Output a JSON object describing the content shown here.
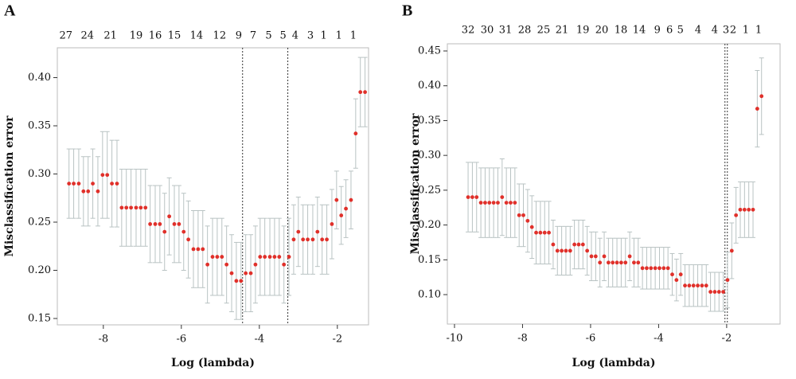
{
  "chart_data": [
    {
      "type": "scatter",
      "label": "A",
      "xlabel": "Log (lambda)",
      "ylabel": "Misclassification error",
      "color": "#e0302a",
      "error_color": "#b9c3c3",
      "xlim": [
        -9.18,
        -1.2
      ],
      "ylim": [
        0.1434,
        0.431
      ],
      "xticks": [
        -8,
        -6,
        -4,
        -2
      ],
      "yticks": [
        0.15,
        {
          "value": 0.2,
          "label": "0.20"
        },
        0.25,
        {
          "value": 0.3,
          "label": "0.30"
        },
        0.35,
        {
          "value": 0.4,
          "label": "0.40"
        }
      ],
      "x2ticks": [
        {
          "value": -8.96,
          "label": "27"
        },
        {
          "value": -8.41,
          "label": "24"
        },
        {
          "value": -7.82,
          "label": "21"
        },
        {
          "value": -7.16,
          "label": "19"
        },
        {
          "value": -6.67,
          "label": "16"
        },
        {
          "value": -6.18,
          "label": "15"
        },
        {
          "value": -5.61,
          "label": "14"
        },
        {
          "value": -5.02,
          "label": "12"
        },
        {
          "value": -4.53,
          "label": "9"
        },
        {
          "value": -4.16,
          "label": "7"
        },
        {
          "value": -3.76,
          "label": "5"
        },
        {
          "value": -3.39,
          "label": "5"
        },
        {
          "value": -3.08,
          "label": "4"
        },
        {
          "value": -2.69,
          "label": "3"
        },
        {
          "value": -2.35,
          "label": "1"
        },
        {
          "value": -1.96,
          "label": "1"
        },
        {
          "value": -1.59,
          "label": "1"
        }
      ],
      "vlines": [
        -4.43,
        -3.27
      ],
      "x": [
        -8.88,
        -8.76,
        -8.63,
        -8.51,
        -8.39,
        -8.27,
        -8.14,
        -8.02,
        -7.9,
        -7.78,
        -7.65,
        -7.53,
        -7.41,
        -7.29,
        -7.16,
        -7.04,
        -6.92,
        -6.8,
        -6.67,
        -6.55,
        -6.43,
        -6.31,
        -6.18,
        -6.06,
        -5.94,
        -5.82,
        -5.69,
        -5.57,
        -5.45,
        -5.33,
        -5.2,
        -5.08,
        -4.96,
        -4.84,
        -4.71,
        -4.59,
        -4.47,
        -4.35,
        -4.22,
        -4.1,
        -3.98,
        -3.86,
        -3.73,
        -3.61,
        -3.49,
        -3.37,
        -3.24,
        -3.12,
        -3.0,
        -2.88,
        -2.76,
        -2.63,
        -2.51,
        -2.39,
        -2.27,
        -2.14,
        -2.02,
        -1.9,
        -1.78,
        -1.65,
        -1.53,
        -1.41,
        -1.29
      ],
      "values": [
        0.29,
        0.29,
        0.29,
        0.282,
        0.282,
        0.29,
        0.282,
        0.299,
        0.299,
        0.29,
        0.29,
        0.265,
        0.265,
        0.265,
        0.265,
        0.265,
        0.265,
        0.248,
        0.248,
        0.248,
        0.24,
        0.256,
        0.248,
        0.248,
        0.24,
        0.232,
        0.222,
        0.222,
        0.222,
        0.206,
        0.214,
        0.214,
        0.214,
        0.206,
        0.197,
        0.189,
        0.189,
        0.197,
        0.197,
        0.206,
        0.214,
        0.214,
        0.214,
        0.214,
        0.214,
        0.206,
        0.214,
        0.232,
        0.24,
        0.232,
        0.232,
        0.232,
        0.24,
        0.232,
        0.232,
        0.248,
        0.273,
        0.257,
        0.264,
        0.273,
        0.342,
        0.385,
        0.385
      ],
      "errors": [
        0.036,
        0.036,
        0.036,
        0.036,
        0.036,
        0.036,
        0.036,
        0.045,
        0.045,
        0.045,
        0.045,
        0.04,
        0.04,
        0.04,
        0.04,
        0.04,
        0.04,
        0.04,
        0.04,
        0.04,
        0.04,
        0.04,
        0.04,
        0.04,
        0.04,
        0.04,
        0.04,
        0.04,
        0.04,
        0.04,
        0.04,
        0.04,
        0.04,
        0.04,
        0.04,
        0.04,
        0.04,
        0.04,
        0.04,
        0.04,
        0.04,
        0.04,
        0.04,
        0.04,
        0.04,
        0.04,
        0.04,
        0.036,
        0.036,
        0.036,
        0.036,
        0.036,
        0.036,
        0.036,
        0.036,
        0.036,
        0.03,
        0.03,
        0.03,
        0.03,
        0.036,
        0.036,
        0.036
      ]
    },
    {
      "type": "scatter",
      "label": "B",
      "xlabel": "Log (lambda)",
      "ylabel": "Misclassification error",
      "color": "#e0302a",
      "error_color": "#b9c3c3",
      "xlim": [
        -10.21,
        -0.43
      ],
      "ylim": [
        0.0577,
        0.4603
      ],
      "xticks": [
        -10,
        -8,
        -6,
        -4,
        -2
      ],
      "yticks": [
        {
          "value": 0.1,
          "label": "0.10"
        },
        0.15,
        {
          "value": 0.2,
          "label": "0.20"
        },
        0.25,
        {
          "value": 0.3,
          "label": "0.30"
        },
        0.35,
        {
          "value": 0.4,
          "label": "0.40"
        },
        0.45
      ],
      "x2ticks": [
        {
          "value": -9.6,
          "label": "32"
        },
        {
          "value": -9.04,
          "label": "30"
        },
        {
          "value": -8.5,
          "label": "31"
        },
        {
          "value": -7.94,
          "label": "28"
        },
        {
          "value": -7.38,
          "label": "25"
        },
        {
          "value": -6.84,
          "label": "21"
        },
        {
          "value": -6.23,
          "label": "19"
        },
        {
          "value": -5.67,
          "label": "20"
        },
        {
          "value": -5.11,
          "label": "18"
        },
        {
          "value": -4.57,
          "label": "14"
        },
        {
          "value": -4.04,
          "label": "9"
        },
        {
          "value": -3.68,
          "label": "6"
        },
        {
          "value": -3.36,
          "label": "5"
        },
        {
          "value": -2.84,
          "label": "4"
        },
        {
          "value": -2.35,
          "label": "4"
        },
        {
          "value": -2.02,
          "label": "3"
        },
        {
          "value": -1.81,
          "label": "2"
        },
        {
          "value": -1.44,
          "label": "1"
        },
        {
          "value": -1.06,
          "label": "1"
        }
      ],
      "vlines": [
        -2.05,
        -1.98
      ],
      "x": [
        -9.6,
        -9.475,
        -9.35,
        -9.225,
        -9.1,
        -8.975,
        -8.85,
        -8.725,
        -8.6,
        -8.475,
        -8.35,
        -8.225,
        -8.1,
        -7.975,
        -7.85,
        -7.725,
        -7.6,
        -7.475,
        -7.35,
        -7.225,
        -7.1,
        -6.975,
        -6.85,
        -6.725,
        -6.6,
        -6.475,
        -6.35,
        -6.225,
        -6.1,
        -5.975,
        -5.85,
        -5.725,
        -5.6,
        -5.475,
        -5.35,
        -5.225,
        -5.1,
        -4.975,
        -4.85,
        -4.725,
        -4.6,
        -4.475,
        -4.35,
        -4.225,
        -4.1,
        -3.975,
        -3.85,
        -3.725,
        -3.6,
        -3.475,
        -3.35,
        -3.225,
        -3.1,
        -2.975,
        -2.85,
        -2.725,
        -2.6,
        -2.475,
        -2.35,
        -2.225,
        -2.1,
        -1.975,
        -1.85,
        -1.725,
        -1.6,
        -1.475,
        -1.35,
        -1.225,
        -1.1,
        -0.975
      ],
      "values": [
        0.24,
        0.24,
        0.24,
        0.232,
        0.232,
        0.232,
        0.232,
        0.232,
        0.24,
        0.232,
        0.232,
        0.232,
        0.214,
        0.214,
        0.206,
        0.197,
        0.189,
        0.189,
        0.189,
        0.189,
        0.172,
        0.163,
        0.163,
        0.163,
        0.163,
        0.172,
        0.172,
        0.172,
        0.163,
        0.155,
        0.155,
        0.146,
        0.155,
        0.146,
        0.146,
        0.146,
        0.146,
        0.146,
        0.155,
        0.146,
        0.146,
        0.138,
        0.138,
        0.138,
        0.138,
        0.138,
        0.138,
        0.138,
        0.129,
        0.121,
        0.129,
        0.113,
        0.113,
        0.113,
        0.113,
        0.113,
        0.113,
        0.104,
        0.104,
        0.104,
        0.104,
        0.121,
        0.163,
        0.214,
        0.222,
        0.222,
        0.222,
        0.222,
        0.367,
        0.385
      ],
      "errors": [
        0.05,
        0.05,
        0.05,
        0.05,
        0.05,
        0.05,
        0.05,
        0.05,
        0.055,
        0.05,
        0.05,
        0.05,
        0.045,
        0.045,
        0.045,
        0.045,
        0.045,
        0.045,
        0.045,
        0.045,
        0.035,
        0.035,
        0.035,
        0.035,
        0.035,
        0.035,
        0.035,
        0.035,
        0.035,
        0.035,
        0.035,
        0.035,
        0.035,
        0.035,
        0.035,
        0.035,
        0.035,
        0.035,
        0.035,
        0.035,
        0.035,
        0.03,
        0.03,
        0.03,
        0.03,
        0.03,
        0.03,
        0.03,
        0.03,
        0.03,
        0.03,
        0.03,
        0.03,
        0.03,
        0.03,
        0.03,
        0.03,
        0.028,
        0.028,
        0.028,
        0.028,
        0.04,
        0.04,
        0.04,
        0.04,
        0.04,
        0.04,
        0.04,
        0.055,
        0.055
      ]
    }
  ]
}
